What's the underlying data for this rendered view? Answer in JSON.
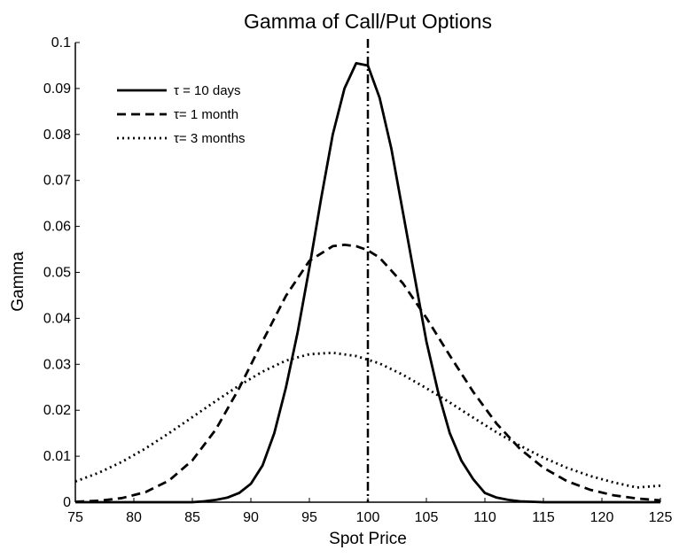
{
  "chart_data": {
    "type": "line",
    "title": "Gamma of Call/Put Options",
    "xlabel": "Spot Price",
    "ylabel": "Gamma",
    "xlim": [
      75,
      125
    ],
    "ylim": [
      0,
      0.1
    ],
    "xticks": [
      75,
      80,
      85,
      90,
      95,
      100,
      105,
      110,
      115,
      120,
      125
    ],
    "xtick_labels": [
      "75",
      "80",
      "85",
      "90",
      "95",
      "100",
      "105",
      "110",
      "115",
      "120",
      "125"
    ],
    "yticks": [
      0,
      0.01,
      0.02,
      0.03,
      0.04,
      0.05,
      0.06,
      0.07,
      0.08,
      0.09,
      0.1
    ],
    "ytick_labels": [
      "0",
      "0.01",
      "0.02",
      "0.03",
      "0.04",
      "0.05",
      "0.06",
      "0.07",
      "0.08",
      "0.09",
      "0.1"
    ],
    "grid": false,
    "legend_position": "top-left",
    "vertical_reference_line": {
      "x": 100,
      "style": "dash-dot"
    },
    "series": [
      {
        "name": "τ = 10 days",
        "style": "solid",
        "x": [
          75,
          80,
          85,
          86,
          87,
          88,
          89,
          90,
          91,
          92,
          93,
          94,
          95,
          96,
          97,
          98,
          99,
          100,
          101,
          102,
          103,
          104,
          105,
          106,
          107,
          108,
          109,
          110,
          111,
          112,
          113,
          114,
          115,
          120,
          125
        ],
        "y": [
          0,
          0,
          0,
          0.0002,
          0.0005,
          0.001,
          0.002,
          0.004,
          0.008,
          0.015,
          0.025,
          0.037,
          0.051,
          0.066,
          0.08,
          0.09,
          0.0955,
          0.095,
          0.088,
          0.077,
          0.063,
          0.049,
          0.035,
          0.024,
          0.015,
          0.009,
          0.005,
          0.002,
          0.001,
          0.0005,
          0.0002,
          0.0001,
          0,
          0,
          0
        ]
      },
      {
        "name": "τ= 1 month",
        "style": "dashed",
        "x": [
          75,
          77,
          79,
          81,
          83,
          85,
          87,
          89,
          91,
          93,
          95,
          97,
          98,
          99,
          100,
          101,
          103,
          105,
          107,
          109,
          111,
          113,
          115,
          117,
          119,
          121,
          123,
          125
        ],
        "y": [
          0.0001,
          0.0003,
          0.0009,
          0.0022,
          0.0047,
          0.0091,
          0.0158,
          0.0248,
          0.035,
          0.0449,
          0.0525,
          0.0557,
          0.056,
          0.0557,
          0.0548,
          0.0532,
          0.0476,
          0.0401,
          0.0319,
          0.024,
          0.0171,
          0.0116,
          0.0075,
          0.0046,
          0.0027,
          0.0015,
          0.0008,
          0.0004
        ]
      },
      {
        "name": "τ= 3 months",
        "style": "dotted",
        "x": [
          75,
          77,
          79,
          81,
          83,
          85,
          87,
          89,
          91,
          93,
          95,
          97,
          99,
          101,
          103,
          105,
          107,
          109,
          111,
          113,
          115,
          117,
          119,
          121,
          123,
          125
        ],
        "y": [
          0.0045,
          0.0064,
          0.0088,
          0.0117,
          0.015,
          0.0185,
          0.022,
          0.0254,
          0.0284,
          0.0308,
          0.0322,
          0.0325,
          0.0318,
          0.0302,
          0.0277,
          0.0248,
          0.0217,
          0.0184,
          0.0152,
          0.0123,
          0.0097,
          0.0075,
          0.0057,
          0.0043,
          0.0032,
          0.0036
        ]
      }
    ]
  }
}
